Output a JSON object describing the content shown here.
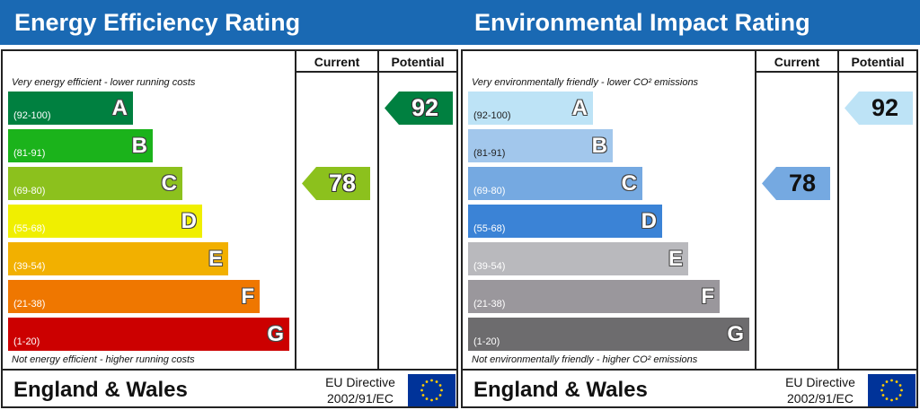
{
  "colors": {
    "header_bg": "#1a69b3",
    "eu_flag_bg": "#003399",
    "eu_star": "#ffcc00"
  },
  "chart_data": [
    {
      "type": "bar",
      "title": "Energy Efficiency Rating",
      "column_headers": [
        "Current",
        "Potential"
      ],
      "top_note": "Very energy efficient - lower running costs",
      "bottom_note": "Not energy efficient - higher running costs",
      "bands": [
        {
          "letter": "A",
          "range": "(92-100)",
          "min": 92,
          "max": 100,
          "color": "#008040"
        },
        {
          "letter": "B",
          "range": "(81-91)",
          "min": 81,
          "max": 91,
          "color": "#1bb31b"
        },
        {
          "letter": "C",
          "range": "(69-80)",
          "min": 69,
          "max": 80,
          "color": "#8cc11d"
        },
        {
          "letter": "D",
          "range": "(55-68)",
          "min": 55,
          "max": 68,
          "color": "#f0ef00"
        },
        {
          "letter": "E",
          "range": "(39-54)",
          "min": 39,
          "max": 54,
          "color": "#f2b000"
        },
        {
          "letter": "F",
          "range": "(21-38)",
          "min": 21,
          "max": 38,
          "color": "#ef7700"
        },
        {
          "letter": "G",
          "range": "(1-20)",
          "min": 1,
          "max": 20,
          "color": "#cc0000"
        }
      ],
      "current": {
        "value": 78,
        "band": "C",
        "color": "#8cc11d"
      },
      "potential": {
        "value": 92,
        "band": "A",
        "color": "#008040"
      },
      "footer": {
        "region": "England & Wales",
        "directive_line1": "EU Directive",
        "directive_line2": "2002/91/EC"
      }
    },
    {
      "type": "bar",
      "title": "Environmental Impact Rating",
      "column_headers": [
        "Current",
        "Potential"
      ],
      "top_note": "Very environmentally friendly - lower CO² emissions",
      "bottom_note": "Not environmentally friendly - higher CO² emissions",
      "bands": [
        {
          "letter": "A",
          "range": "(92-100)",
          "min": 92,
          "max": 100,
          "color": "#bde3f6"
        },
        {
          "letter": "B",
          "range": "(81-91)",
          "min": 81,
          "max": 91,
          "color": "#a2c7ec"
        },
        {
          "letter": "C",
          "range": "(69-80)",
          "min": 69,
          "max": 80,
          "color": "#75a9e1"
        },
        {
          "letter": "D",
          "range": "(55-68)",
          "min": 55,
          "max": 68,
          "color": "#3b83d6"
        },
        {
          "letter": "E",
          "range": "(39-54)",
          "min": 39,
          "max": 54,
          "color": "#b9b9bd"
        },
        {
          "letter": "F",
          "range": "(21-38)",
          "min": 21,
          "max": 38,
          "color": "#9a979c"
        },
        {
          "letter": "G",
          "range": "(1-20)",
          "min": 1,
          "max": 20,
          "color": "#6d6c6e"
        }
      ],
      "current": {
        "value": 78,
        "band": "C",
        "color": "#75a9e1"
      },
      "potential": {
        "value": 92,
        "band": "A",
        "color": "#bde3f6"
      },
      "footer": {
        "region": "England & Wales",
        "directive_line1": "EU Directive",
        "directive_line2": "2002/91/EC"
      }
    }
  ]
}
